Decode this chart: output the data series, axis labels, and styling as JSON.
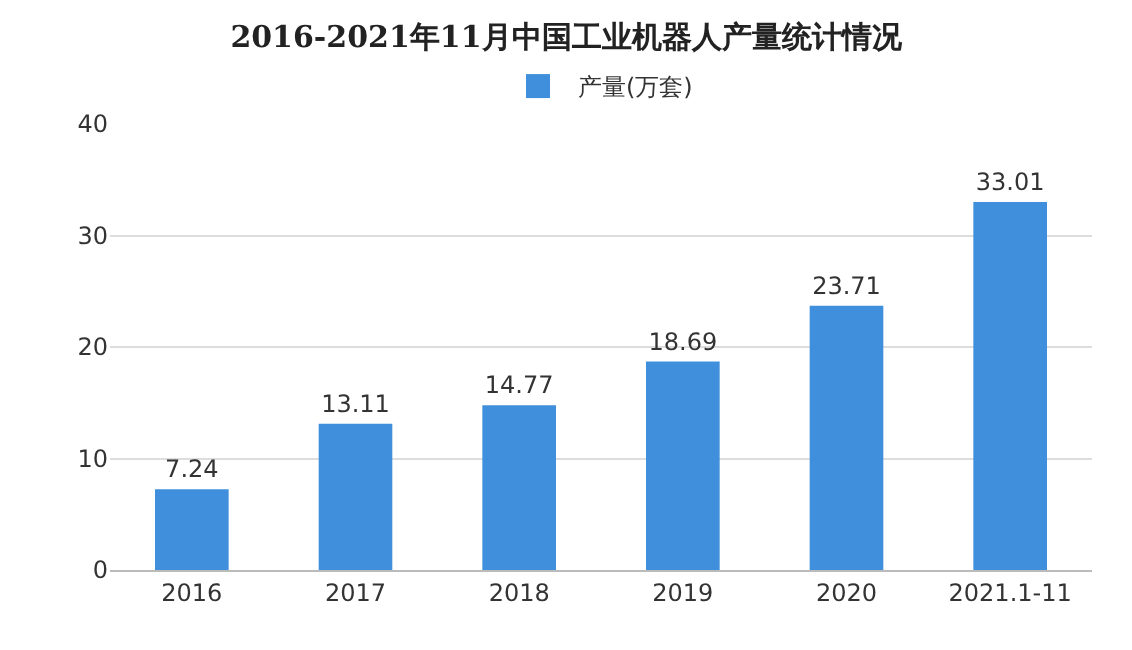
{
  "chart_data": {
    "type": "bar",
    "title": "2016-2021年11月中国工业机器人产量统计情况",
    "categories": [
      "2016",
      "2017",
      "2018",
      "2019",
      "2020",
      "2021.1-11"
    ],
    "series": [
      {
        "name": "产量(万套)",
        "color": "#3f8fdc",
        "values": [
          7.24,
          13.11,
          14.77,
          18.69,
          23.71,
          33.01
        ]
      }
    ],
    "ylim": [
      0,
      40
    ],
    "yticks": [
      0,
      10,
      20,
      30,
      40
    ],
    "grid": "y",
    "legend": "top",
    "data_labels": true
  }
}
